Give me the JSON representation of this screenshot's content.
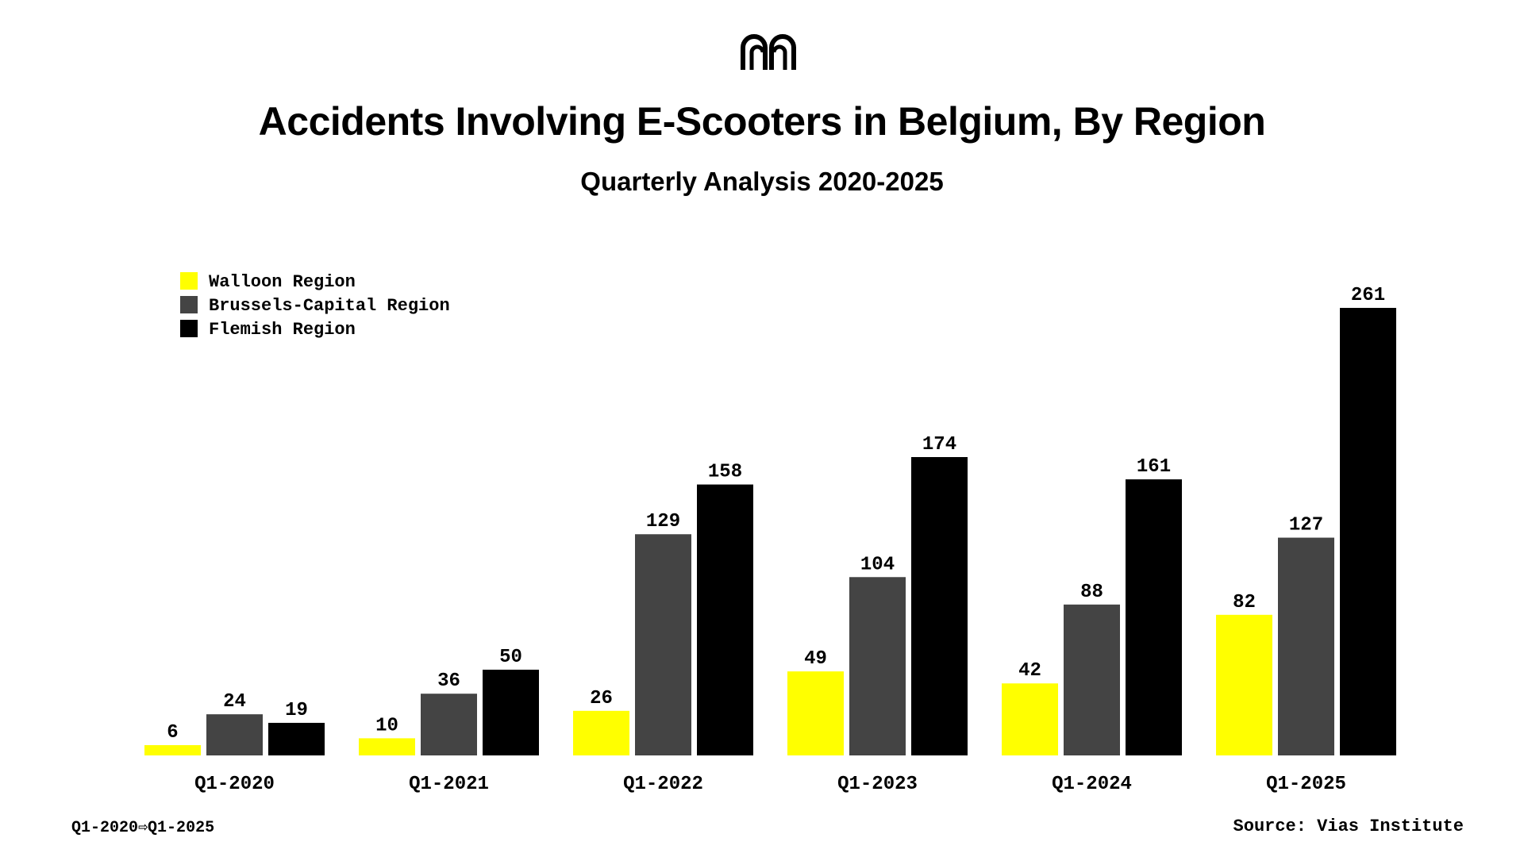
{
  "header": {
    "title": "Accidents Involving E-Scooters in Belgium, By Region",
    "subtitle": "Quarterly Analysis 2020-2025",
    "logo_icon": "brand-logo-icon"
  },
  "footer": {
    "period_label": "Q1-2020⇨Q1-2025",
    "source": "Source: Vias Institute"
  },
  "chart_data": {
    "type": "bar",
    "title": "Accidents Involving E-Scooters in Belgium, By Region",
    "subtitle": "Quarterly Analysis 2020-2025",
    "xlabel": "",
    "ylabel": "",
    "grid": false,
    "legend_position": "top-left",
    "categories": [
      "Q1-2020",
      "Q1-2021",
      "Q1-2022",
      "Q1-2023",
      "Q1-2024",
      "Q1-2025"
    ],
    "ylim": [
      0,
      261
    ],
    "series": [
      {
        "name": "Walloon Region",
        "color": "#FFFF00",
        "values": [
          6,
          10,
          26,
          49,
          42,
          82
        ]
      },
      {
        "name": "Brussels-Capital Region",
        "color": "#444444",
        "values": [
          24,
          36,
          129,
          104,
          88,
          127
        ]
      },
      {
        "name": "Flemish Region",
        "color": "#000000",
        "values": [
          19,
          50,
          158,
          174,
          161,
          261
        ]
      }
    ]
  }
}
